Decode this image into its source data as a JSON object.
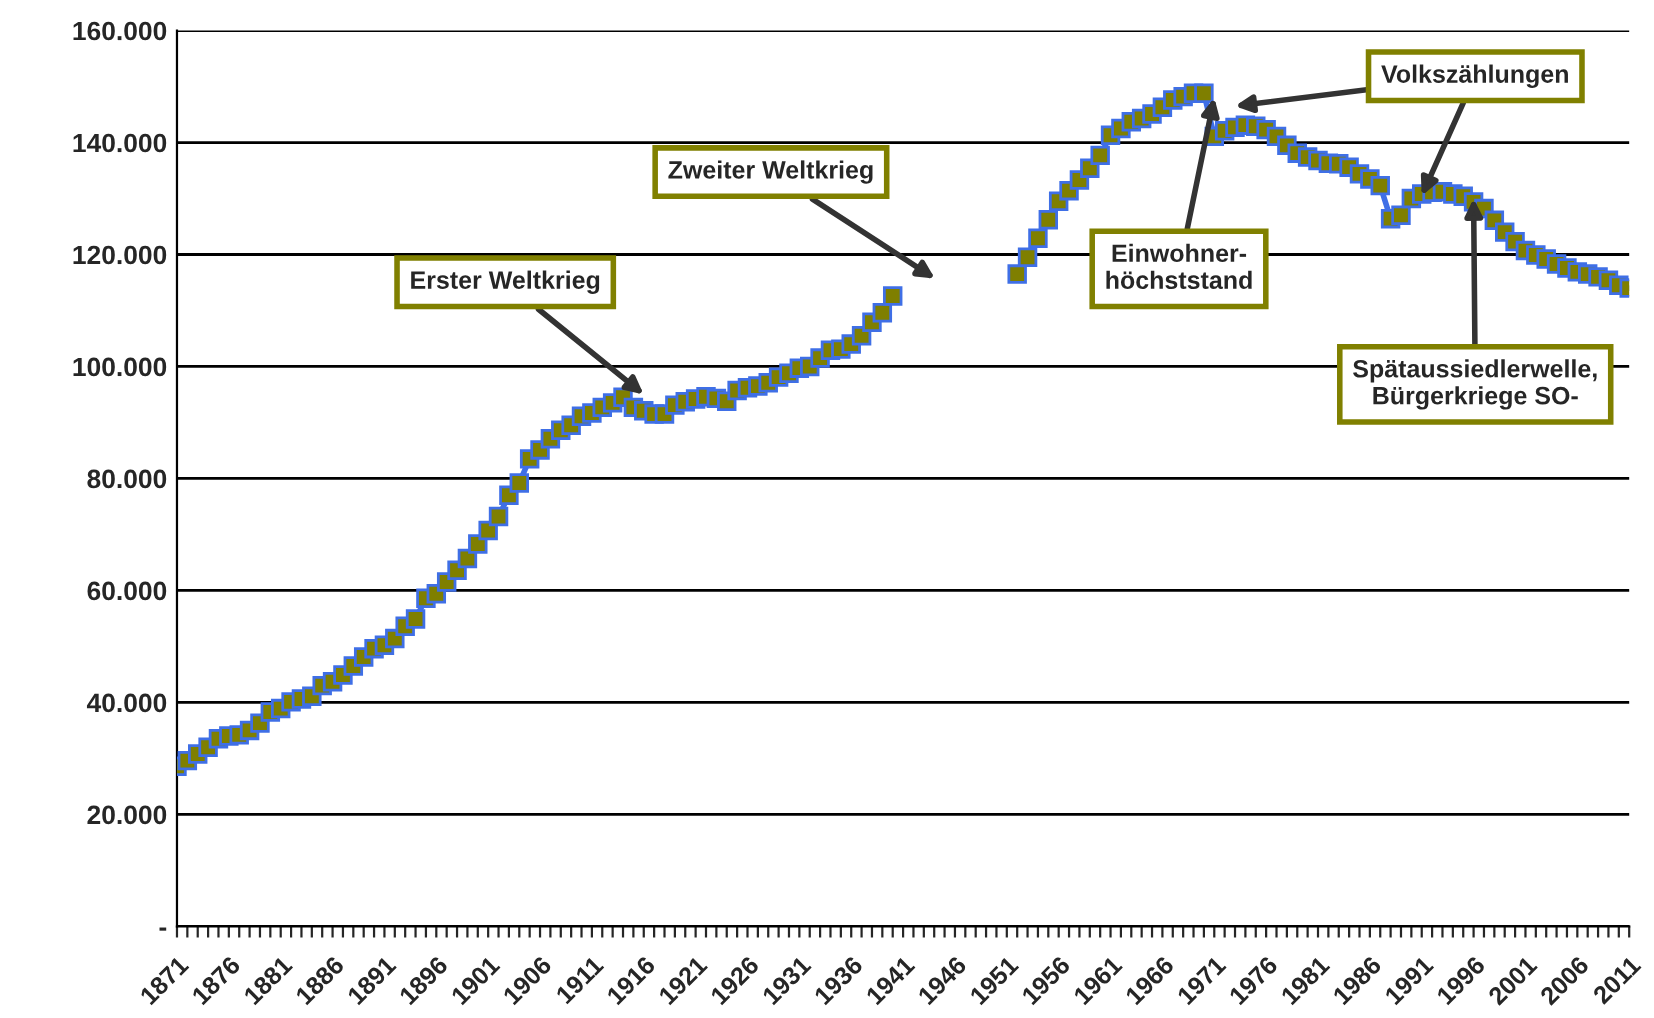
{
  "chart_data": {
    "type": "line",
    "categories": [
      "1871",
      null,
      null,
      null,
      null,
      "1876",
      null,
      null,
      null,
      null,
      "1881",
      null,
      null,
      null,
      null,
      "1886",
      null,
      null,
      null,
      null,
      "1891",
      null,
      null,
      null,
      null,
      "1896",
      null,
      null,
      null,
      null,
      "1901",
      null,
      null,
      null,
      null,
      "1906",
      null,
      null,
      null,
      null,
      "1911",
      null,
      null,
      null,
      null,
      "1916",
      null,
      null,
      null,
      null,
      "1921",
      null,
      null,
      null,
      null,
      "1926",
      null,
      null,
      null,
      null,
      "1931",
      null,
      null,
      null,
      null,
      "1936",
      null,
      null,
      null,
      null,
      "1941",
      null,
      null,
      null,
      null,
      "1946",
      null,
      null,
      null,
      null,
      "1951",
      null,
      null,
      null,
      null,
      "1956",
      null,
      null,
      null,
      null,
      "1961",
      null,
      null,
      null,
      null,
      "1966",
      null,
      null,
      null,
      null,
      "1971",
      null,
      null,
      null,
      null,
      "1976",
      null,
      null,
      null,
      null,
      "1981",
      null,
      null,
      null,
      null,
      "1986",
      null,
      null,
      null,
      null,
      "1991",
      null,
      null,
      null,
      null,
      "1996",
      null,
      null,
      null,
      null,
      "2001",
      null,
      null,
      null,
      null,
      "2006",
      null,
      null,
      null,
      null,
      "2011"
    ],
    "series": [
      {
        "color": "#7f7f00",
        "values": [
          28600,
          29600,
          30800,
          32000,
          33500,
          34000,
          34200,
          35000,
          36300,
          38300,
          38900,
          40100,
          40600,
          41100,
          43000,
          43700,
          44900,
          46500,
          48100,
          49600,
          50200,
          51400,
          53600,
          54900,
          58600,
          59400,
          61500,
          63600,
          65700,
          68300,
          70700,
          73200,
          77000,
          79200,
          83500,
          85100,
          87100,
          88600,
          89500,
          91100,
          91700,
          92700,
          93500,
          94500,
          92700,
          92100,
          91500,
          91500,
          93100,
          93700,
          94200,
          94600,
          94300,
          93800,
          95700,
          96200,
          96500,
          97100,
          98100,
          98800,
          99700,
          100000,
          101500,
          102900,
          103100,
          104000,
          105500,
          107900,
          109600,
          112600,
          null,
          null,
          null,
          null,
          null,
          null,
          null,
          null,
          null,
          null,
          null,
          116500,
          119500,
          122900,
          126200,
          129500,
          131400,
          133300,
          135400,
          137700,
          141300,
          142500,
          143700,
          144300,
          145100,
          146300,
          147600,
          148200,
          148800,
          148800,
          141100,
          142100,
          142700,
          143100,
          142900,
          142300,
          141100,
          139500,
          138100,
          137400,
          136800,
          136300,
          136200,
          135600,
          134400,
          133500,
          132300,
          126400,
          127000,
          130000,
          130800,
          131100,
          131200,
          130800,
          130400,
          129400,
          128200,
          126100,
          124000,
          122300,
          120700,
          119900,
          119200,
          118300,
          117600,
          116900,
          116500,
          116000,
          115400,
          114500,
          114000
        ]
      }
    ],
    "ylim": [
      0,
      160000
    ],
    "yticks": [
      {
        "value": 0,
        "label": "-"
      },
      {
        "value": 20000,
        "label": "20.000"
      },
      {
        "value": 40000,
        "label": "40.000"
      },
      {
        "value": 60000,
        "label": "60.000"
      },
      {
        "value": 80000,
        "label": "80.000"
      },
      {
        "value": 100000,
        "label": "100.000"
      },
      {
        "value": 120000,
        "label": "120.000"
      },
      {
        "value": 140000,
        "label": "140.000"
      },
      {
        "value": 160000,
        "label": "160.000"
      }
    ],
    "grid": "y",
    "marker": "square",
    "line_style": "solid",
    "legend": false,
    "annotations": [
      {
        "text": "Erster Weltkrieg",
        "x": "1916",
        "y": 95000
      },
      "Zweiter Weltkrieg",
      {
        "text": "Einwohner-\nhöchststand",
        "x": "1971",
        "y": 148000
      },
      {
        "text": "Volkszählungen",
        "x": "1991",
        "y": 130500
      },
      {
        "text": "Spätaussiedlerwelle,\nBürgerkriege SO-",
        "x": "1996",
        "y": 130000
      }
    ]
  }
}
